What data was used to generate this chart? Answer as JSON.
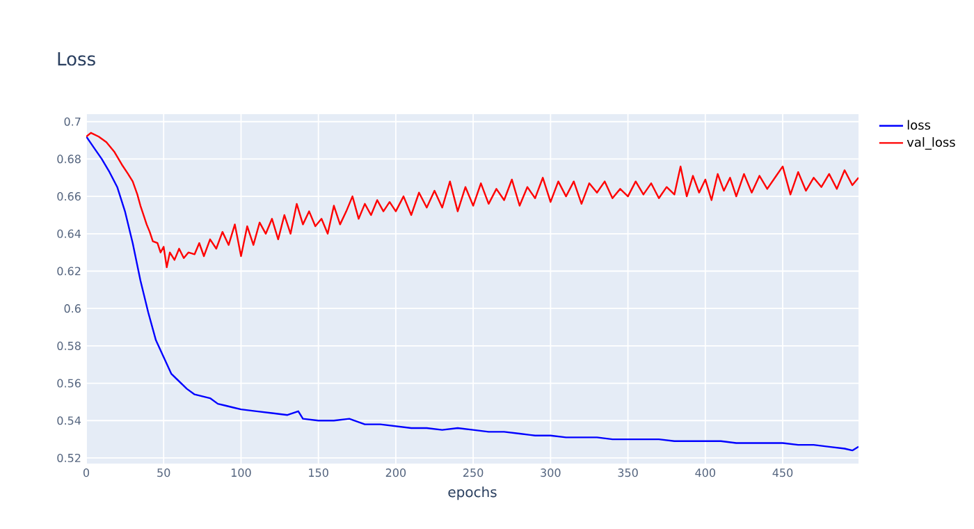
{
  "chart_data": {
    "type": "line",
    "title": "Loss",
    "xlabel": "epochs",
    "xlim": [
      0,
      499
    ],
    "ylim": [
      0.517,
      0.704
    ],
    "xticks": [
      0,
      50,
      100,
      150,
      200,
      250,
      300,
      350,
      400,
      450
    ],
    "yticks": [
      0.52,
      0.54,
      0.56,
      0.58,
      0.6,
      0.62,
      0.64,
      0.66,
      0.68,
      0.7
    ],
    "grid": true,
    "legend": "top right",
    "marker": "none",
    "line_style": "solid",
    "series": [
      {
        "name": "loss",
        "color": "#0000ff",
        "x": [
          0,
          5,
          10,
          15,
          20,
          25,
          30,
          35,
          40,
          45,
          50,
          55,
          60,
          65,
          70,
          75,
          80,
          85,
          90,
          95,
          100,
          110,
          120,
          130,
          137,
          140,
          150,
          160,
          170,
          180,
          190,
          200,
          210,
          220,
          230,
          240,
          250,
          260,
          270,
          280,
          290,
          300,
          310,
          320,
          330,
          340,
          350,
          360,
          370,
          380,
          390,
          400,
          410,
          420,
          430,
          440,
          450,
          460,
          470,
          480,
          490,
          495,
          499
        ],
        "values": [
          0.692,
          0.686,
          0.68,
          0.673,
          0.665,
          0.652,
          0.635,
          0.615,
          0.598,
          0.583,
          0.574,
          0.565,
          0.561,
          0.557,
          0.554,
          0.553,
          0.552,
          0.549,
          0.548,
          0.547,
          0.546,
          0.545,
          0.544,
          0.543,
          0.545,
          0.541,
          0.54,
          0.54,
          0.541,
          0.538,
          0.538,
          0.537,
          0.536,
          0.536,
          0.535,
          0.536,
          0.535,
          0.534,
          0.534,
          0.533,
          0.532,
          0.532,
          0.531,
          0.531,
          0.531,
          0.53,
          0.53,
          0.53,
          0.53,
          0.529,
          0.529,
          0.529,
          0.529,
          0.528,
          0.528,
          0.528,
          0.528,
          0.527,
          0.527,
          0.526,
          0.525,
          0.524,
          0.526
        ]
      },
      {
        "name": "val_loss",
        "color": "#ff0000",
        "x": [
          0,
          3,
          8,
          13,
          18,
          23,
          27,
          30,
          33,
          35,
          37,
          39,
          41,
          43,
          46,
          48,
          50,
          52,
          54,
          57,
          60,
          63,
          66,
          70,
          73,
          76,
          80,
          84,
          88,
          92,
          96,
          100,
          104,
          108,
          112,
          116,
          120,
          124,
          128,
          132,
          136,
          140,
          144,
          148,
          152,
          156,
          160,
          164,
          168,
          172,
          176,
          180,
          184,
          188,
          192,
          196,
          200,
          205,
          210,
          215,
          220,
          225,
          230,
          235,
          240,
          245,
          250,
          255,
          260,
          265,
          270,
          275,
          280,
          285,
          290,
          295,
          300,
          305,
          310,
          315,
          320,
          325,
          330,
          335,
          340,
          345,
          350,
          355,
          360,
          365,
          370,
          375,
          380,
          384,
          388,
          392,
          396,
          400,
          404,
          408,
          412,
          416,
          420,
          425,
          430,
          435,
          440,
          445,
          450,
          455,
          460,
          465,
          470,
          475,
          480,
          485,
          490,
          495,
          499
        ],
        "values": [
          0.692,
          0.694,
          0.692,
          0.689,
          0.684,
          0.677,
          0.672,
          0.668,
          0.661,
          0.655,
          0.65,
          0.645,
          0.641,
          0.636,
          0.635,
          0.63,
          0.633,
          0.622,
          0.63,
          0.626,
          0.632,
          0.627,
          0.63,
          0.629,
          0.635,
          0.628,
          0.637,
          0.632,
          0.641,
          0.634,
          0.645,
          0.628,
          0.644,
          0.634,
          0.646,
          0.64,
          0.648,
          0.637,
          0.65,
          0.64,
          0.656,
          0.645,
          0.652,
          0.644,
          0.648,
          0.64,
          0.655,
          0.645,
          0.652,
          0.66,
          0.648,
          0.656,
          0.65,
          0.658,
          0.652,
          0.657,
          0.652,
          0.66,
          0.65,
          0.662,
          0.654,
          0.663,
          0.654,
          0.668,
          0.652,
          0.665,
          0.655,
          0.667,
          0.656,
          0.664,
          0.658,
          0.669,
          0.655,
          0.665,
          0.659,
          0.67,
          0.657,
          0.668,
          0.66,
          0.668,
          0.656,
          0.667,
          0.662,
          0.668,
          0.659,
          0.664,
          0.66,
          0.668,
          0.661,
          0.667,
          0.659,
          0.665,
          0.661,
          0.676,
          0.66,
          0.671,
          0.662,
          0.669,
          0.658,
          0.672,
          0.663,
          0.67,
          0.66,
          0.672,
          0.662,
          0.671,
          0.664,
          0.67,
          0.676,
          0.661,
          0.673,
          0.663,
          0.67,
          0.665,
          0.672,
          0.664,
          0.674,
          0.666,
          0.67
        ]
      }
    ]
  }
}
